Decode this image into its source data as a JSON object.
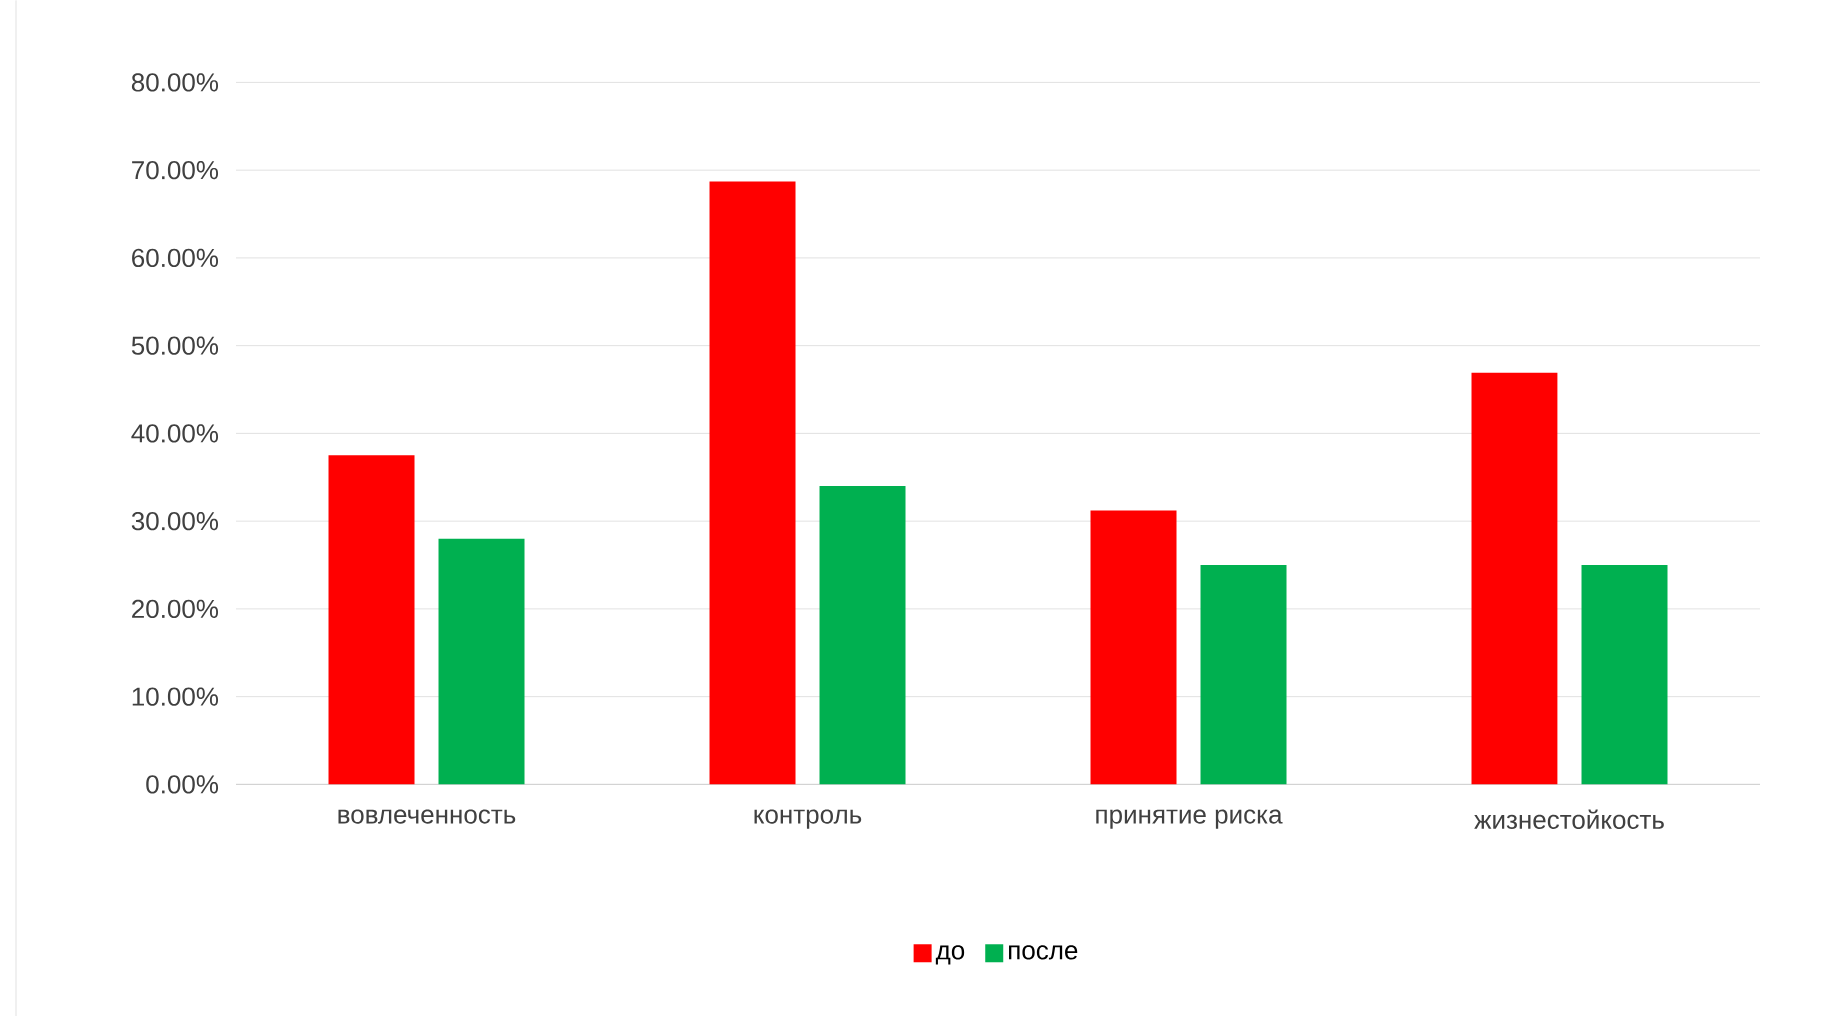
{
  "chart_data": {
    "type": "bar",
    "categories": [
      "вовлеченность",
      "контроль",
      "принятие риска",
      "жизнестойкость"
    ],
    "series": [
      {
        "name": "до",
        "color": "#ff0000",
        "values": [
          37.5,
          68.7,
          31.2,
          46.9
        ]
      },
      {
        "name": "после",
        "color": "#00b050",
        "values": [
          28,
          34,
          25,
          25
        ]
      }
    ],
    "ylim": [
      0,
      80
    ],
    "yticks": [
      {
        "value": 0,
        "label": "0.00%"
      },
      {
        "value": 10,
        "label": "10.00%"
      },
      {
        "value": 20,
        "label": "20.00%"
      },
      {
        "value": 30,
        "label": "30.00%"
      },
      {
        "value": 40,
        "label": "40.00%"
      },
      {
        "value": 50,
        "label": "50.00%"
      },
      {
        "value": 60,
        "label": "60.00%"
      },
      {
        "value": 70,
        "label": "70.00%"
      },
      {
        "value": 80,
        "label": "80.00%"
      }
    ],
    "grid": "y",
    "legend": "bottom"
  }
}
